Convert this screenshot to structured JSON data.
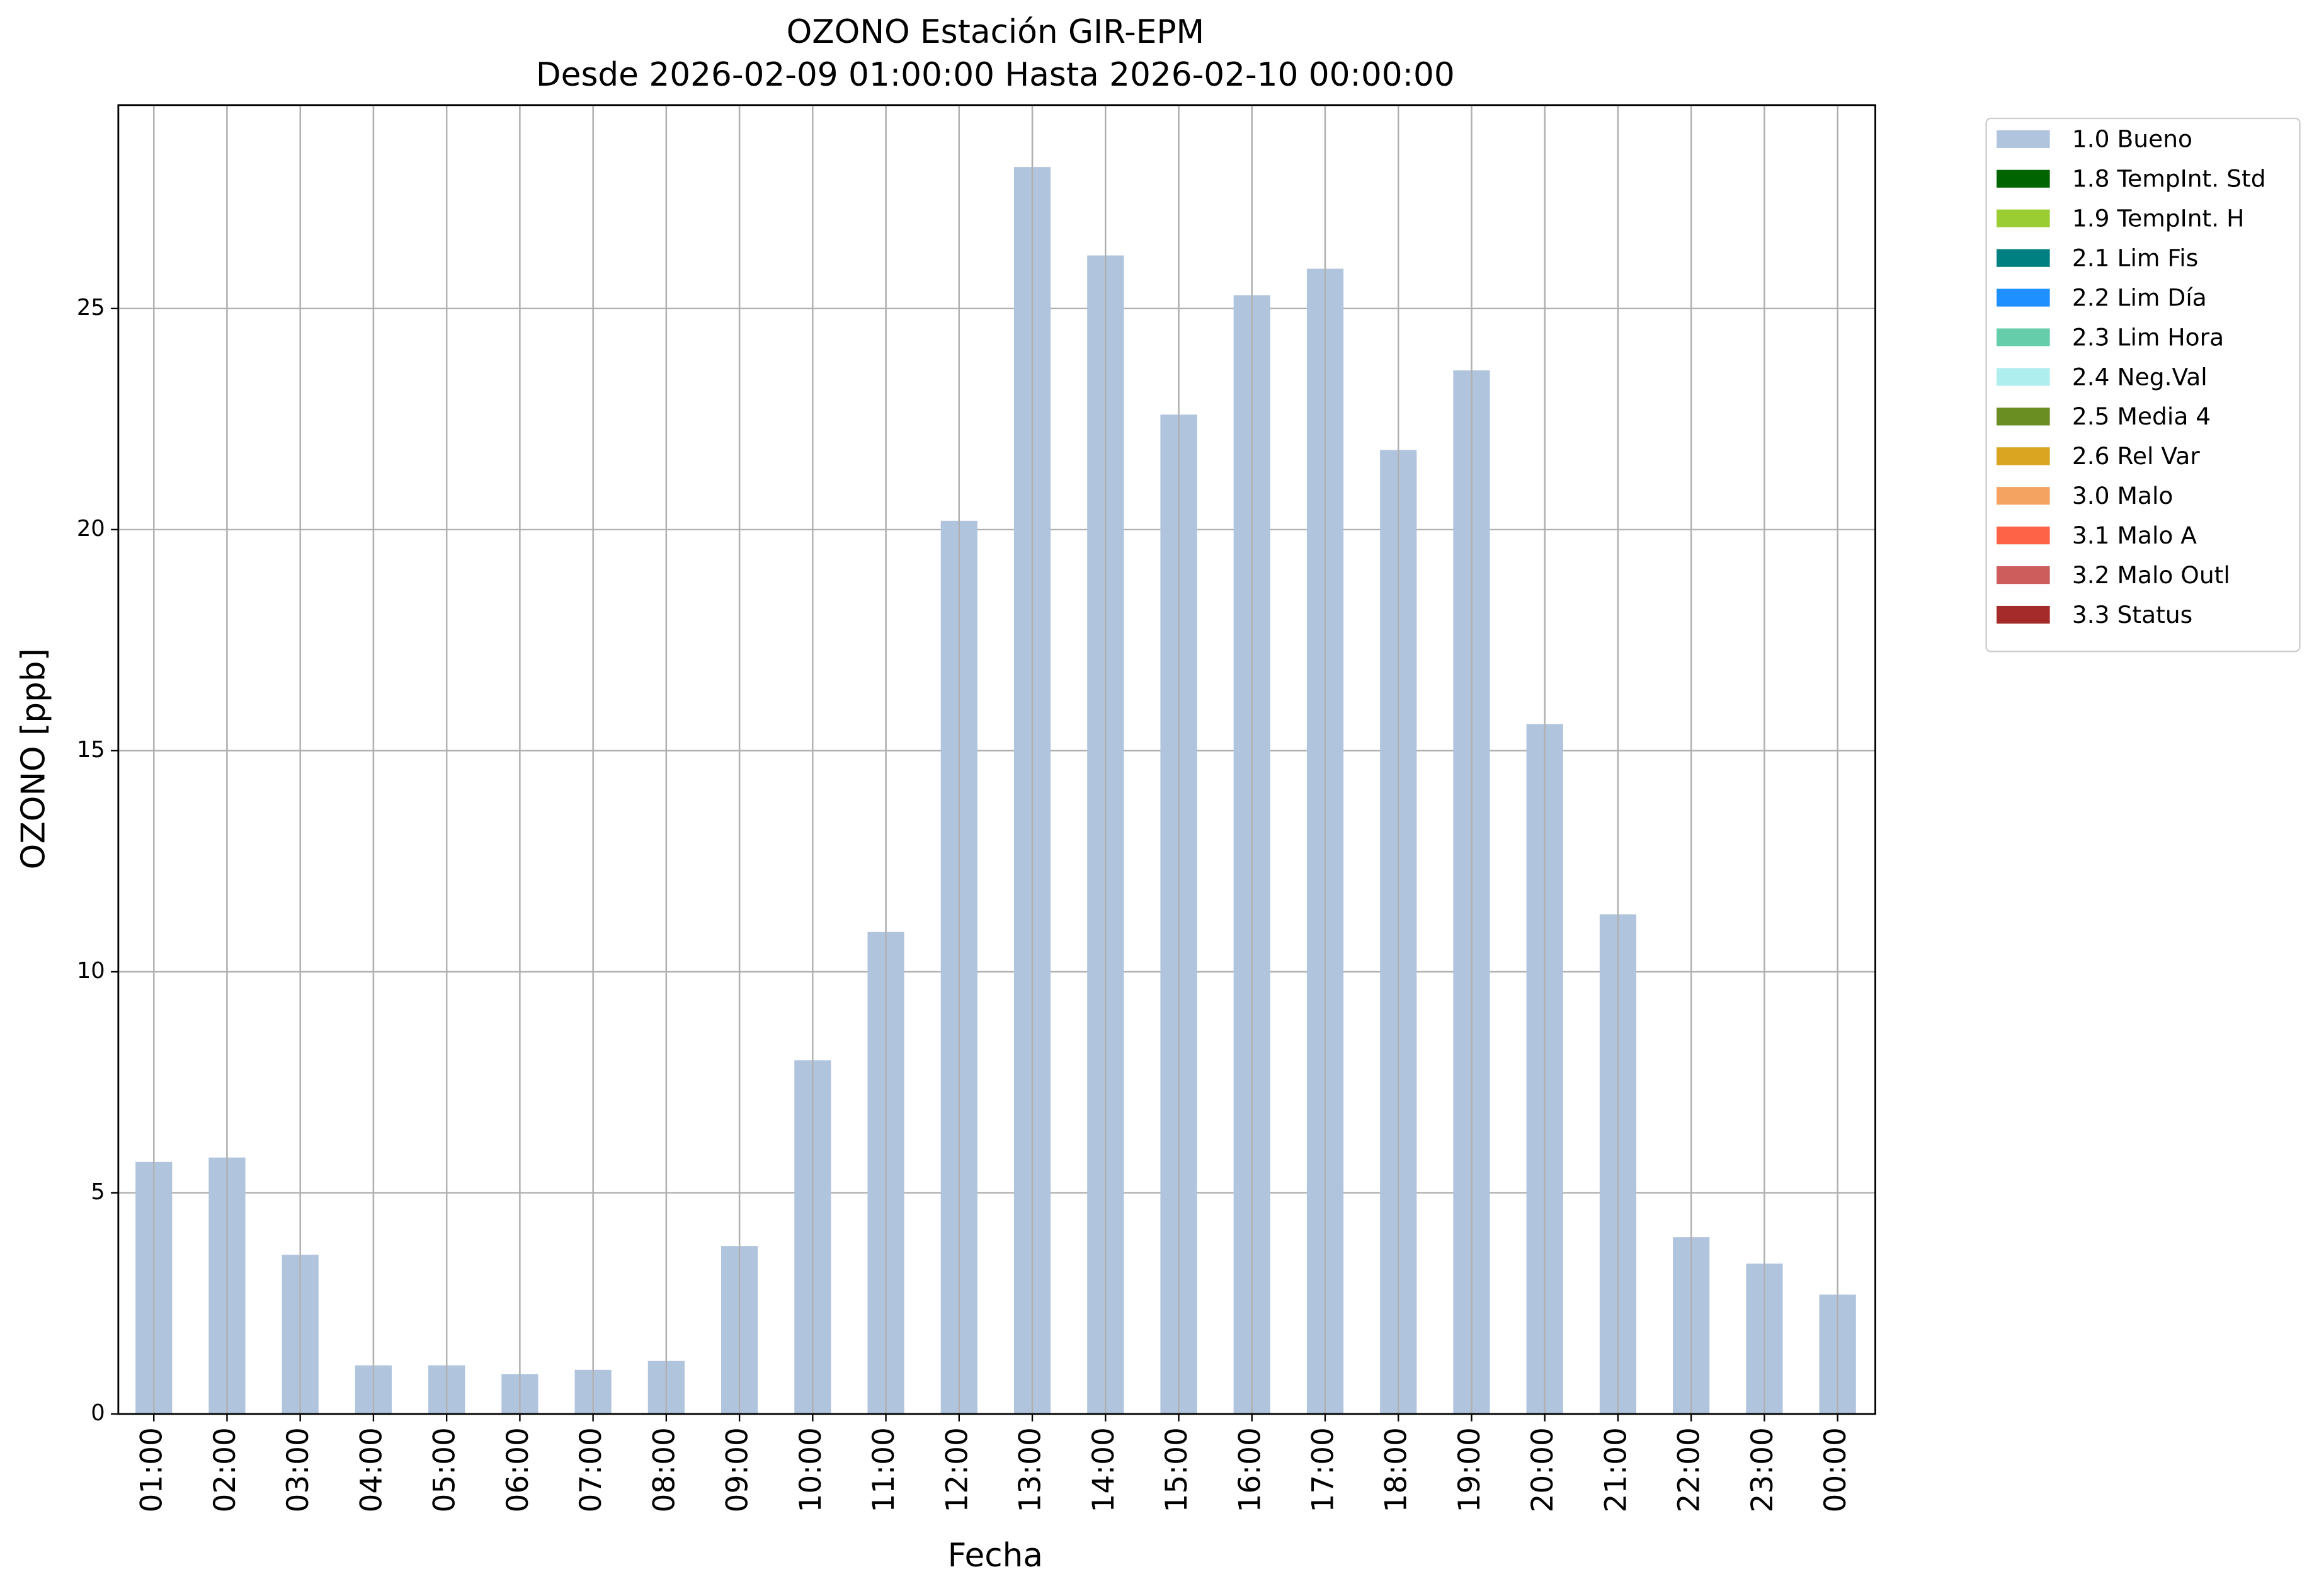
{
  "chart_data": {
    "type": "bar",
    "stacked": true,
    "title": "OZONO Estación GIR-EPM",
    "subtitle": "Desde 2026-02-09 01:00:00 Hasta 2026-02-10 00:00:00",
    "x_label": "Fecha",
    "y_label": "OZONO [ppb]",
    "categories": [
      "01:00",
      "02:00",
      "03:00",
      "04:00",
      "05:00",
      "06:00",
      "07:00",
      "08:00",
      "09:00",
      "10:00",
      "11:00",
      "12:00",
      "13:00",
      "14:00",
      "15:00",
      "16:00",
      "17:00",
      "18:00",
      "19:00",
      "20:00",
      "21:00",
      "22:00",
      "23:00",
      "00:00"
    ],
    "series": [
      {
        "name": "1.0 Bueno",
        "color": "#b0c4de",
        "values": [
          5.7,
          5.8,
          3.6,
          1.1,
          1.1,
          0.9,
          1.0,
          1.2,
          3.8,
          8.0,
          10.9,
          20.2,
          28.2,
          26.2,
          22.6,
          25.3,
          25.9,
          21.8,
          23.6,
          15.6,
          11.3,
          4.0,
          3.4,
          2.7
        ]
      },
      {
        "name": "1.8 TempInt. Std",
        "color": "#006400",
        "values": [
          null,
          null,
          null,
          null,
          null,
          null,
          null,
          null,
          null,
          null,
          null,
          null,
          null,
          null,
          null,
          null,
          null,
          null,
          null,
          null,
          null,
          null,
          null,
          null
        ]
      },
      {
        "name": "1.9 TempInt. H",
        "color": "#9acd32",
        "values": [
          null,
          null,
          null,
          null,
          null,
          null,
          null,
          null,
          null,
          null,
          null,
          null,
          null,
          null,
          null,
          null,
          null,
          null,
          null,
          null,
          null,
          null,
          null,
          null
        ]
      },
      {
        "name": "2.1 Lim Fis",
        "color": "#008080",
        "values": [
          null,
          null,
          null,
          null,
          null,
          null,
          null,
          null,
          null,
          null,
          null,
          null,
          null,
          null,
          null,
          null,
          null,
          null,
          null,
          null,
          null,
          null,
          null,
          null
        ]
      },
      {
        "name": "2.2 Lim Día",
        "color": "#1e90ff",
        "values": [
          null,
          null,
          null,
          null,
          null,
          null,
          null,
          null,
          null,
          null,
          null,
          null,
          null,
          null,
          null,
          null,
          null,
          null,
          null,
          null,
          null,
          null,
          null,
          null
        ]
      },
      {
        "name": "2.3 Lim Hora",
        "color": "#66cdaa",
        "values": [
          null,
          null,
          null,
          null,
          null,
          null,
          null,
          null,
          null,
          null,
          null,
          null,
          null,
          null,
          null,
          null,
          null,
          null,
          null,
          null,
          null,
          null,
          null,
          null
        ]
      },
      {
        "name": "2.4 Neg.Val",
        "color": "#afeeee",
        "values": [
          null,
          null,
          null,
          null,
          null,
          null,
          null,
          null,
          null,
          null,
          null,
          null,
          null,
          null,
          null,
          null,
          null,
          null,
          null,
          null,
          null,
          null,
          null,
          null
        ]
      },
      {
        "name": "2.5 Media 4",
        "color": "#6b8e23",
        "values": [
          null,
          null,
          null,
          null,
          null,
          null,
          null,
          null,
          null,
          null,
          null,
          null,
          null,
          null,
          null,
          null,
          null,
          null,
          null,
          null,
          null,
          null,
          null,
          null
        ]
      },
      {
        "name": "2.6 Rel Var",
        "color": "#daa520",
        "values": [
          null,
          null,
          null,
          null,
          null,
          null,
          null,
          null,
          null,
          null,
          null,
          null,
          null,
          null,
          null,
          null,
          null,
          null,
          null,
          null,
          null,
          null,
          null,
          null
        ]
      },
      {
        "name": "3.0 Malo",
        "color": "#f4a460",
        "values": [
          null,
          null,
          null,
          null,
          null,
          null,
          null,
          null,
          null,
          null,
          null,
          null,
          null,
          null,
          null,
          null,
          null,
          null,
          null,
          null,
          null,
          null,
          null,
          null
        ]
      },
      {
        "name": "3.1 Malo A",
        "color": "#ff6347",
        "values": [
          null,
          null,
          null,
          null,
          null,
          null,
          null,
          null,
          null,
          null,
          null,
          null,
          null,
          null,
          null,
          null,
          null,
          null,
          null,
          null,
          null,
          null,
          null,
          null
        ]
      },
      {
        "name": "3.2 Malo Outl",
        "color": "#cd5c5c",
        "values": [
          null,
          null,
          null,
          null,
          null,
          null,
          null,
          null,
          null,
          null,
          null,
          null,
          null,
          null,
          null,
          null,
          null,
          null,
          null,
          null,
          null,
          null,
          null,
          null
        ]
      },
      {
        "name": "3.3 Status",
        "color": "#a52a2a",
        "values": [
          null,
          null,
          null,
          null,
          null,
          null,
          null,
          null,
          null,
          null,
          null,
          null,
          null,
          null,
          null,
          null,
          null,
          null,
          null,
          null,
          null,
          null,
          null,
          null
        ]
      }
    ],
    "ylim": [
      0,
      29.6
    ],
    "yticks": [
      0,
      5,
      10,
      15,
      20,
      25
    ],
    "grid": true,
    "legend": "outside-right"
  }
}
